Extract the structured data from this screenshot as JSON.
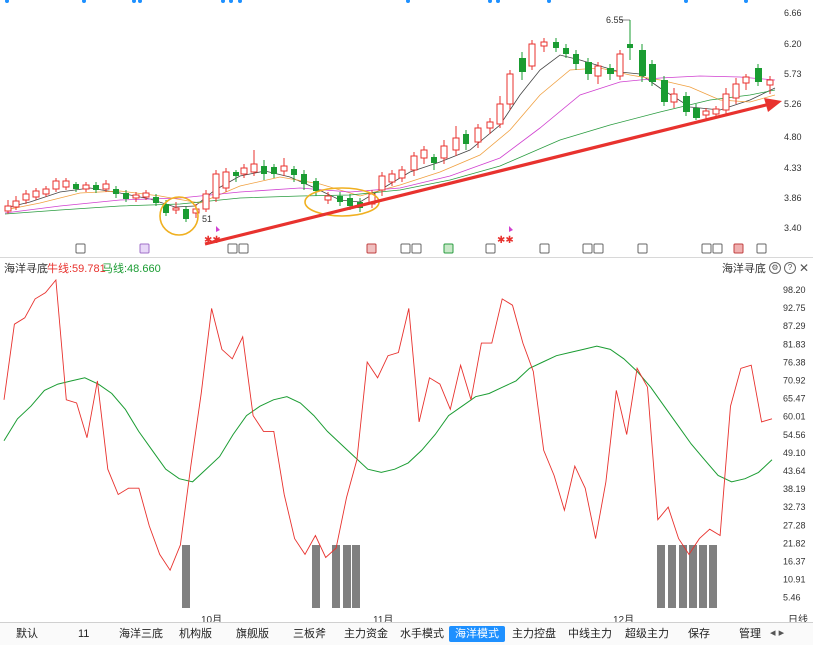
{
  "upper_axis": {
    "ticks": [
      "6.66",
      "6.20",
      "5.73",
      "5.26",
      "4.80",
      "4.33",
      "3.86",
      "3.40"
    ]
  },
  "upper_annotations": {
    "high_label": "6.55",
    "low_label": "51"
  },
  "indicator": {
    "name": "海洋寻底",
    "val1_label": "牛线:59.781",
    "val2_label": "马线:48.660",
    "right_title": "海洋寻底",
    "gear": "⚙",
    "help": "?",
    "close": "✕"
  },
  "lower_axis": {
    "ticks": [
      "98.20",
      "92.75",
      "87.29",
      "81.83",
      "76.38",
      "70.92",
      "65.47",
      "60.01",
      "54.56",
      "49.10",
      "43.64",
      "38.19",
      "32.73",
      "27.28",
      "21.82",
      "16.37",
      "10.91",
      "5.46"
    ]
  },
  "x_axis": {
    "months": [
      "10月",
      "11月",
      "12月"
    ],
    "right_label": "日线"
  },
  "tabs": [
    "默认",
    "11",
    "海洋三底",
    "机构版",
    "旗舰版",
    "三板斧",
    "主力资金",
    "水手模式",
    "海洋模式",
    "主力控盘",
    "中线主力",
    "超级主力",
    "保存",
    "管理"
  ],
  "active_tab": "海洋模式",
  "colors": {
    "up": "#e8322e",
    "down": "#1a9c32",
    "niu": "#e8322e",
    "ma": "#1a9c32",
    "bar": "#808080",
    "active": "#1e90ff"
  },
  "chart_data": {
    "type": "line",
    "series": [
      {
        "name": "牛线",
        "values": [
          66,
          90,
          92,
          98,
          100,
          104,
          66,
          65,
          54,
          72,
          44,
          36,
          38,
          38,
          26,
          17,
          12,
          20,
          45,
          68,
          95,
          82,
          79,
          86,
          61,
          56,
          56,
          36,
          22,
          17,
          23,
          16,
          19,
          35,
          47,
          78,
          73,
          80,
          81,
          95,
          59,
          73,
          71,
          63,
          77,
          66,
          84,
          84,
          98,
          96,
          84,
          75,
          50,
          42,
          31,
          45,
          38,
          22,
          40,
          69,
          55,
          76,
          70,
          28,
          32,
          22,
          17,
          22,
          25,
          23,
          64,
          76,
          77,
          59,
          60
        ]
      },
      {
        "name": "马线",
        "values": [
          53,
          60,
          64,
          69,
          71,
          72,
          73,
          71,
          68,
          63,
          56,
          50,
          44,
          41,
          40,
          44,
          48,
          55,
          61,
          64,
          66,
          67,
          65,
          61,
          56,
          52,
          48,
          44,
          43,
          44,
          46,
          50,
          55,
          61,
          64,
          67,
          68,
          70,
          72,
          76,
          78,
          80,
          81,
          82,
          83,
          82,
          79,
          75,
          70,
          64,
          58,
          52,
          47,
          42,
          40,
          41,
          43,
          47
        ]
      }
    ],
    "bars_x": [
      186,
      316,
      336,
      347,
      356,
      661,
      672,
      683,
      693,
      703,
      713
    ],
    "ylim": [
      0,
      104
    ]
  }
}
